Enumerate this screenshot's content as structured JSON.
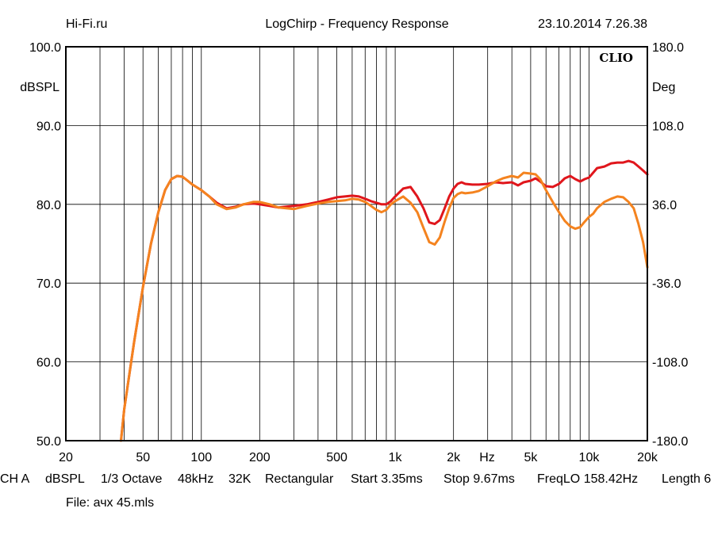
{
  "header": {
    "left": "Hi-Fi.ru",
    "center": "LogChirp - Frequency Response",
    "right": "23.10.2014 7.26.38"
  },
  "brand": "CLIO",
  "chart_data": {
    "type": "line",
    "title": "LogChirp - Frequency Response",
    "x_scale": "log",
    "xlim": [
      20,
      20000
    ],
    "ylim": [
      50,
      100
    ],
    "y2lim": [
      -180,
      180
    ],
    "ylabel": "dBSPL",
    "y2label": "Deg",
    "xunit": "Hz",
    "grid": true,
    "x_ticks": [
      {
        "value": 20,
        "label": "20"
      },
      {
        "value": 50,
        "label": "50"
      },
      {
        "value": 100,
        "label": "100"
      },
      {
        "value": 200,
        "label": "200"
      },
      {
        "value": 500,
        "label": "500"
      },
      {
        "value": 1000,
        "label": "1k"
      },
      {
        "value": 2000,
        "label": "2k"
      },
      {
        "value": 5000,
        "label": "5k"
      },
      {
        "value": 10000,
        "label": "10k"
      },
      {
        "value": 20000,
        "label": "20k"
      }
    ],
    "y_ticks": [
      {
        "value": 100,
        "label": "100.0"
      },
      {
        "value": 90,
        "label": "90.0"
      },
      {
        "value": 80,
        "label": "80.0"
      },
      {
        "value": 70,
        "label": "70.0"
      },
      {
        "value": 60,
        "label": "60.0"
      },
      {
        "value": 50,
        "label": "50.0"
      }
    ],
    "y2_ticks": [
      {
        "value": 180,
        "label": "180.0"
      },
      {
        "value": 108,
        "label": "108.0"
      },
      {
        "value": 36,
        "label": "36.0"
      },
      {
        "value": -36,
        "label": "-36.0"
      },
      {
        "value": -108,
        "label": "-108.0"
      },
      {
        "value": -180,
        "label": "-180.0"
      }
    ],
    "series": [
      {
        "color": "#e0161c",
        "x": [
          38.5,
          40,
          45,
          50,
          55,
          60,
          65,
          70,
          75,
          80,
          85,
          90,
          100,
          110,
          120,
          135,
          150,
          165,
          185,
          200,
          225,
          250,
          300,
          350,
          400,
          450,
          500,
          550,
          600,
          650,
          700,
          750,
          800,
          850,
          900,
          950,
          1000,
          1100,
          1200,
          1300,
          1400,
          1500,
          1600,
          1700,
          1800,
          1900,
          2000,
          2100,
          2200,
          2300,
          2500,
          2700,
          3000,
          3300,
          3600,
          4000,
          4300,
          4600,
          5000,
          5300,
          5600,
          6000,
          6500,
          7000,
          7500,
          8000,
          8500,
          9000,
          9500,
          10000,
          10500,
          11000,
          12000,
          13000,
          14000,
          15000,
          16000,
          17000,
          18000,
          19000,
          20000
        ],
        "y": [
          50.0,
          54.0,
          62.5,
          69.5,
          75.0,
          79.0,
          81.8,
          83.2,
          83.6,
          83.5,
          83.0,
          82.5,
          81.8,
          81.0,
          80.2,
          79.5,
          79.7,
          80.0,
          80.1,
          80.0,
          79.8,
          79.6,
          79.8,
          80.0,
          80.3,
          80.6,
          80.9,
          81.0,
          81.1,
          81.0,
          80.7,
          80.4,
          80.2,
          80.0,
          80.0,
          80.4,
          81.0,
          82.0,
          82.2,
          81.0,
          79.5,
          77.7,
          77.5,
          78.0,
          79.5,
          81.0,
          82.0,
          82.6,
          82.8,
          82.6,
          82.5,
          82.5,
          82.6,
          82.8,
          82.7,
          82.8,
          82.4,
          82.8,
          83.0,
          83.3,
          82.9,
          82.3,
          82.2,
          82.6,
          83.3,
          83.6,
          83.2,
          82.9,
          83.2,
          83.4,
          84.0,
          84.6,
          84.8,
          85.2,
          85.3,
          85.3,
          85.5,
          85.3,
          84.8,
          84.3,
          83.8
        ]
      },
      {
        "color": "#f4831f",
        "x": [
          38.5,
          40,
          45,
          50,
          55,
          60,
          65,
          70,
          75,
          80,
          85,
          90,
          100,
          110,
          120,
          135,
          150,
          165,
          185,
          200,
          225,
          250,
          300,
          350,
          400,
          450,
          500,
          550,
          600,
          650,
          700,
          750,
          800,
          850,
          900,
          950,
          1000,
          1100,
          1200,
          1300,
          1400,
          1500,
          1600,
          1700,
          1800,
          1900,
          2000,
          2100,
          2200,
          2300,
          2500,
          2700,
          3000,
          3300,
          3600,
          4000,
          4300,
          4600,
          5000,
          5300,
          5600,
          6000,
          6500,
          7000,
          7500,
          8000,
          8500,
          9000,
          9500,
          10000,
          10500,
          11000,
          12000,
          13000,
          14000,
          15000,
          16000,
          17000,
          18000,
          19000,
          20000
        ],
        "y": [
          50.0,
          54.0,
          62.5,
          69.5,
          75.0,
          79.0,
          81.8,
          83.2,
          83.6,
          83.5,
          83.0,
          82.5,
          81.8,
          81.0,
          80.0,
          79.4,
          79.6,
          80.0,
          80.3,
          80.3,
          80.0,
          79.6,
          79.4,
          79.8,
          80.1,
          80.3,
          80.4,
          80.5,
          80.7,
          80.6,
          80.3,
          79.8,
          79.3,
          79.0,
          79.3,
          80.0,
          80.4,
          81.0,
          80.2,
          79.0,
          77.0,
          75.2,
          74.9,
          75.8,
          77.8,
          79.5,
          80.8,
          81.3,
          81.5,
          81.4,
          81.5,
          81.7,
          82.3,
          82.9,
          83.3,
          83.6,
          83.4,
          84.0,
          83.9,
          83.8,
          83.2,
          81.8,
          80.3,
          79.0,
          77.9,
          77.2,
          76.9,
          77.1,
          77.8,
          78.4,
          78.8,
          79.5,
          80.3,
          80.7,
          81.0,
          80.9,
          80.3,
          79.5,
          77.5,
          75.2,
          72.0
        ]
      }
    ]
  },
  "footer": {
    "channel": "CH A",
    "unit": "dBSPL",
    "smoothing": "1/3 Octave",
    "rate": "48kHz",
    "size": "32K",
    "window": "Rectangular",
    "start": "Start 3.35ms",
    "stop": "Stop 9.67ms",
    "freqlo": "FreqLO 158.42Hz",
    "length": "Length 6",
    "file": "File: ачх 45.mls"
  }
}
